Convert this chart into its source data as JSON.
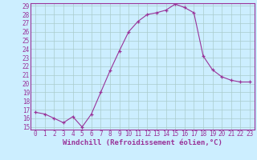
{
  "x": [
    0,
    1,
    2,
    3,
    4,
    5,
    6,
    7,
    8,
    9,
    10,
    11,
    12,
    13,
    14,
    15,
    16,
    17,
    18,
    19,
    20,
    21,
    22,
    23
  ],
  "y": [
    16.7,
    16.5,
    16.0,
    15.5,
    16.2,
    15.0,
    16.5,
    19.0,
    21.5,
    23.8,
    26.0,
    27.2,
    28.0,
    28.2,
    28.5,
    29.2,
    28.8,
    28.2,
    23.2,
    21.6,
    20.8,
    20.4,
    20.2,
    20.2
  ],
  "line_color": "#993399",
  "marker": "+",
  "bg_color": "#cceeff",
  "grid_color": "#aacccc",
  "xlabel": "Windchill (Refroidissement éolien,°C)",
  "xlabel_color": "#993399",
  "ylim_min": 15,
  "ylim_max": 29,
  "yticks": [
    15,
    16,
    17,
    18,
    19,
    20,
    21,
    22,
    23,
    24,
    25,
    26,
    27,
    28,
    29
  ],
  "xticks": [
    0,
    1,
    2,
    3,
    4,
    5,
    6,
    7,
    8,
    9,
    10,
    11,
    12,
    13,
    14,
    15,
    16,
    17,
    18,
    19,
    20,
    21,
    22,
    23
  ],
  "tick_color": "#993399",
  "spine_color": "#993399",
  "tick_fontsize": 5.5,
  "xlabel_fontsize": 6.5,
  "linewidth": 0.8,
  "markersize": 3.5
}
